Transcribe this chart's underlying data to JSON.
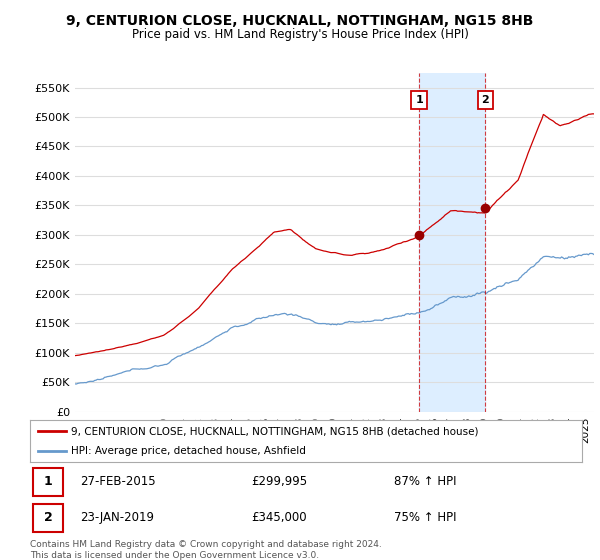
{
  "title": "9, CENTURION CLOSE, HUCKNALL, NOTTINGHAM, NG15 8HB",
  "subtitle": "Price paid vs. HM Land Registry's House Price Index (HPI)",
  "ylabel_ticks": [
    0,
    50000,
    100000,
    150000,
    200000,
    250000,
    300000,
    350000,
    400000,
    450000,
    500000,
    550000
  ],
  "ylabel_labels": [
    "£0",
    "£50K",
    "£100K",
    "£150K",
    "£200K",
    "£250K",
    "£300K",
    "£350K",
    "£400K",
    "£450K",
    "£500K",
    "£550K"
  ],
  "ylim": [
    0,
    575000
  ],
  "xlim_start": 1994.7,
  "xlim_end": 2025.5,
  "sale1_date": 2015.12,
  "sale1_price": 299995,
  "sale2_date": 2019.05,
  "sale2_price": 345000,
  "sale1_text": "27-FEB-2015",
  "sale1_amount": "£299,995",
  "sale1_hpi": "87% ↑ HPI",
  "sale2_text": "23-JAN-2019",
  "sale2_amount": "£345,000",
  "sale2_hpi": "75% ↑ HPI",
  "red_color": "#cc0000",
  "blue_color": "#6699cc",
  "shade_color": "#ddeeff",
  "dot_color": "#990000",
  "legend_label1": "9, CENTURION CLOSE, HUCKNALL, NOTTINGHAM, NG15 8HB (detached house)",
  "legend_label2": "HPI: Average price, detached house, Ashfield",
  "footer": "Contains HM Land Registry data © Crown copyright and database right 2024.\nThis data is licensed under the Open Government Licence v3.0.",
  "background_color": "#ffffff",
  "grid_color": "#dddddd"
}
